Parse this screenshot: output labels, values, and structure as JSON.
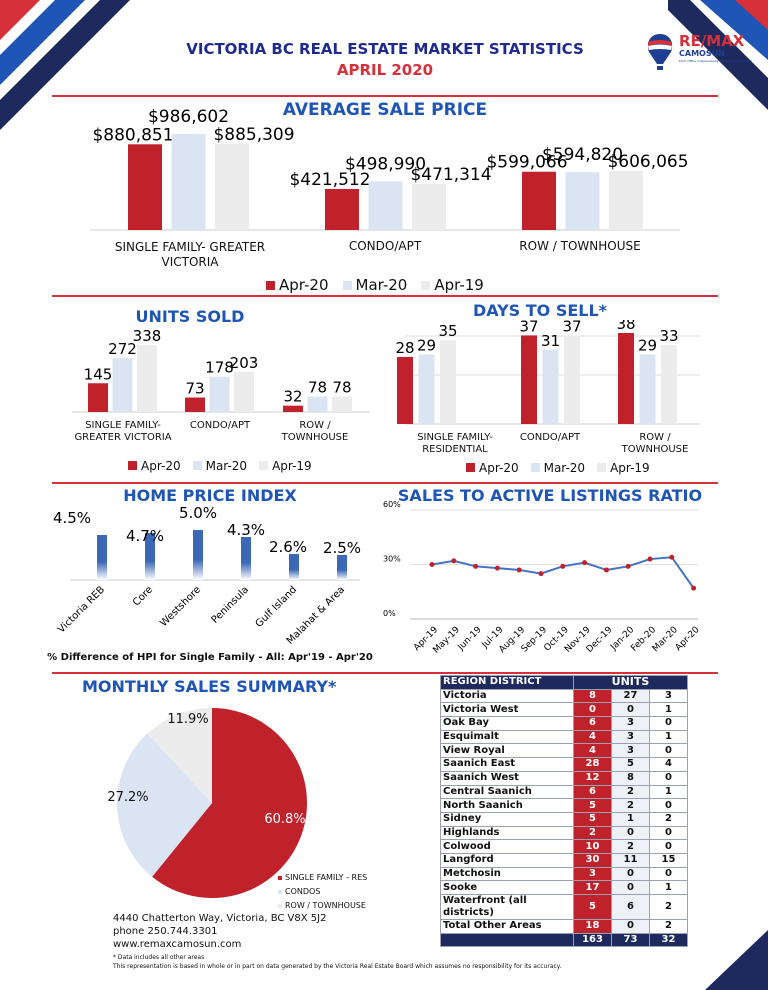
{
  "header": {
    "title": "VICTORIA BC REAL ESTATE MARKET STATISTICS",
    "subtitle": "APRIL 2020",
    "logo_text": "RE/MAX",
    "logo_sub": "CAMOSUN",
    "logo_tagline": "Each Office Independently Owned and Operated"
  },
  "colors": {
    "apr20": "#c0222c",
    "mar20": "#dbe4f3",
    "apr19": "#ececec",
    "title_blue": "#1f55b5",
    "navy": "#1e2a5e",
    "line_blue": "#4472c4"
  },
  "legend": [
    "Apr-20",
    "Mar-20",
    "Apr-19"
  ],
  "chart_data": [
    {
      "id": "avg_price",
      "type": "bar",
      "title": "AVERAGE SALE PRICE",
      "categories": [
        "SINGLE FAMILY- GREATER VICTORIA",
        "CONDO/APT",
        "ROW  / TOWNHOUSE"
      ],
      "series": [
        {
          "name": "Apr-20",
          "values": [
            880851,
            421512,
            599066
          ],
          "labels": [
            "$880,851",
            "$421,512",
            "$599,066"
          ]
        },
        {
          "name": "Mar-20",
          "values": [
            986602,
            498990,
            594820
          ],
          "labels": [
            "$986,602",
            "$498,990",
            "$594,820"
          ]
        },
        {
          "name": "Apr-19",
          "values": [
            885309,
            471314,
            606065
          ],
          "labels": [
            "$885,309",
            "$471,314",
            "$606,065"
          ]
        }
      ]
    },
    {
      "id": "units_sold",
      "type": "bar",
      "title": "UNITS SOLD",
      "categories": [
        "SINGLE FAMILY- GREATER VICTORIA",
        "CONDO/APT",
        "ROW / TOWNHOUSE"
      ],
      "series": [
        {
          "name": "Apr-20",
          "values": [
            145,
            73,
            32
          ]
        },
        {
          "name": "Mar-20",
          "values": [
            272,
            178,
            78
          ]
        },
        {
          "name": "Apr-19",
          "values": [
            338,
            203,
            78
          ]
        }
      ]
    },
    {
      "id": "days_to_sell",
      "type": "bar",
      "title": "DAYS TO SELL*",
      "categories": [
        "SINGLE FAMILY- RESIDENTIAL",
        "CONDO/APT",
        "ROW / TOWNHOUSE"
      ],
      "series": [
        {
          "name": "Apr-20",
          "values": [
            28,
            37,
            38
          ]
        },
        {
          "name": "Mar-20",
          "values": [
            29,
            31,
            29
          ]
        },
        {
          "name": "Apr-19",
          "values": [
            35,
            37,
            33
          ]
        }
      ]
    },
    {
      "id": "hpi",
      "type": "bar",
      "title": "HOME PRICE INDEX",
      "xlabel": "% Difference of HPI for Single Family - All: Apr'19 - Apr'20",
      "categories": [
        "Victoria REB",
        "Core",
        "Westshore",
        "Peninsula",
        "Gulf Island",
        "Malahat & Area"
      ],
      "values": [
        4.5,
        4.7,
        5.0,
        4.3,
        2.6,
        2.5
      ],
      "labels": [
        "4.5%",
        "4.7%",
        "5.0%",
        "4.3%",
        "2.6%",
        "2.5%"
      ]
    },
    {
      "id": "sales_ratio",
      "type": "line",
      "title": "SALES TO ACTIVE LISTINGS RATIO",
      "categories": [
        "Apr-19",
        "May-19",
        "Jun-19",
        "Jul-19",
        "Aug-19",
        "Sep-19",
        "Oct-19",
        "Nov-19",
        "Dec-19",
        "Jan-20",
        "Feb-20",
        "Mar-20",
        "Apr-20"
      ],
      "values": [
        30,
        32,
        29,
        28,
        27,
        25,
        29,
        31,
        27,
        29,
        33,
        34,
        17
      ],
      "ylim": [
        0,
        60
      ],
      "yticks": [
        "0%",
        "30%",
        "60%"
      ],
      "grid": true
    },
    {
      "id": "monthly_summary",
      "type": "pie",
      "title": "MONTHLY SALES SUMMARY*",
      "slices": [
        {
          "name": "SINGLE FAMILY - RES",
          "value": 60.8,
          "label": "60.8%",
          "color": "#c0222c"
        },
        {
          "name": "CONDOS",
          "value": 27.2,
          "label": "27.2%",
          "color": "#dbe4f3"
        },
        {
          "name": "ROW / TOWNHOUSE",
          "value": 11.9,
          "label": "11.9%",
          "color": "#ececec"
        }
      ]
    }
  ],
  "table": {
    "header": [
      "REGION DISTRICT",
      "UNITS"
    ],
    "rows": [
      [
        "Victoria",
        "8",
        "27",
        "3"
      ],
      [
        "Victoria West",
        "0",
        "0",
        "1"
      ],
      [
        "Oak Bay",
        "6",
        "3",
        "0"
      ],
      [
        "Esquimalt",
        "4",
        "3",
        "1"
      ],
      [
        "View Royal",
        "4",
        "3",
        "0"
      ],
      [
        "Saanich East",
        "28",
        "5",
        "4"
      ],
      [
        "Saanich West",
        "12",
        "8",
        "0"
      ],
      [
        "Central Saanich",
        "6",
        "2",
        "1"
      ],
      [
        "North Saanich",
        "5",
        "2",
        "0"
      ],
      [
        "Sidney",
        "5",
        "1",
        "2"
      ],
      [
        "Highlands",
        "2",
        "0",
        "0"
      ],
      [
        "Colwood",
        "10",
        "2",
        "0"
      ],
      [
        "Langford",
        "30",
        "11",
        "15"
      ],
      [
        "Metchosin",
        "3",
        "0",
        "0"
      ],
      [
        "Sooke",
        "17",
        "0",
        "1"
      ],
      [
        "Waterfront (all districts)",
        "5",
        "6",
        "2"
      ],
      [
        "Total Other Areas",
        "18",
        "0",
        "2"
      ]
    ],
    "totals": [
      "163",
      "73",
      "32"
    ]
  },
  "footer": {
    "address": "4440 Chatterton Way, Victoria, BC V8X 5J2",
    "phone": "phone 250.744.3301",
    "website": "www.remaxcamosun.com",
    "note": "* Data includes all other areas",
    "disclaimer": "This representation is based in whole or in part on data generated by the Victoria Real Estate Board which assumes no responsibility for its accuracy."
  }
}
